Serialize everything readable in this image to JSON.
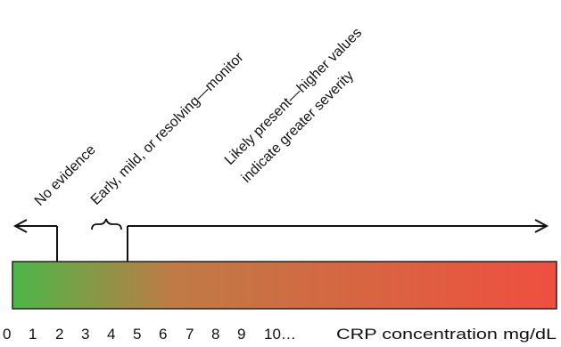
{
  "zones": {
    "no_evidence": "No evidence",
    "early": "Early, mild, or resolving—monitor",
    "likely_line1": "Likely present—higher values",
    "likely_line2": "indicate greater severity"
  },
  "scale": {
    "ticks": [
      "0",
      "1",
      "2",
      "3",
      "4",
      "5",
      "6",
      "7",
      "8",
      "9",
      "10…"
    ],
    "unit_label": "CRP concentration mg/dL"
  },
  "colors": {
    "gradient_start": "#4cb748",
    "gradient_mid": "#c07a45",
    "gradient_end": "#ef4f3f"
  }
}
